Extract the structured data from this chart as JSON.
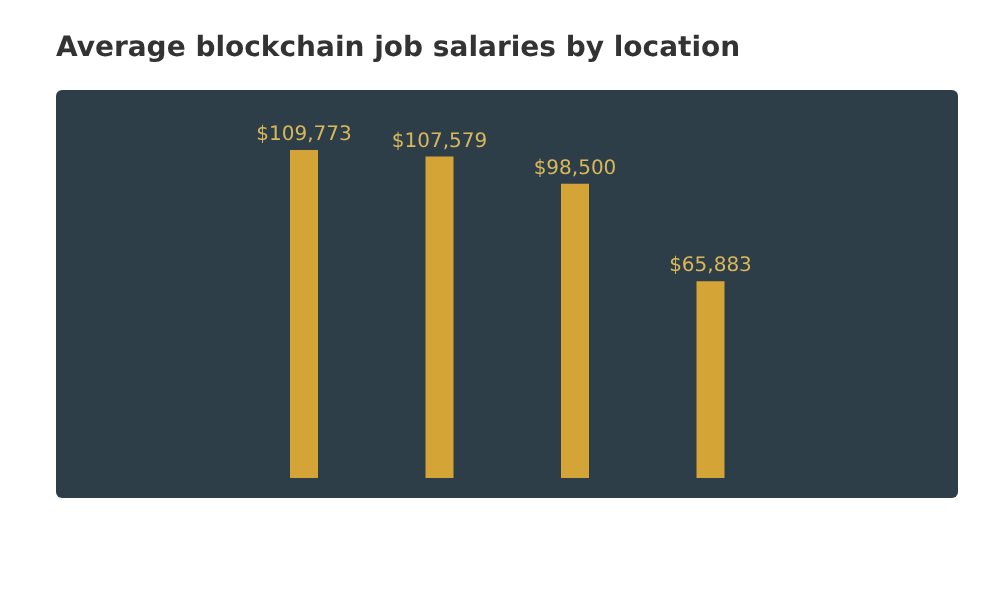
{
  "chart_data": {
    "type": "bar",
    "title": "Average blockchain job salaries by location",
    "categories": [
      null,
      null,
      null,
      null
    ],
    "values": [
      109773,
      107579,
      98500,
      65883
    ],
    "value_labels": [
      "$109,773",
      "$107,579",
      "$98,500",
      "$65,883"
    ],
    "color": "#d4a437"
  }
}
